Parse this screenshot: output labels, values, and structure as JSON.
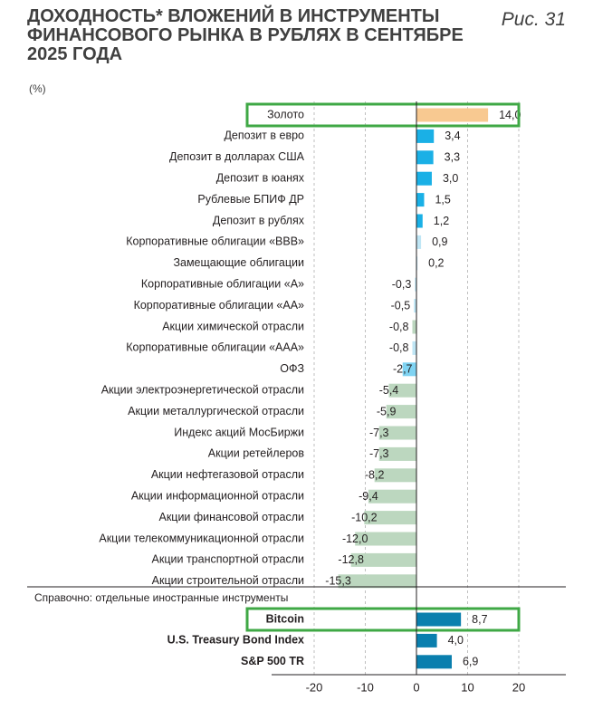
{
  "header": {
    "title_line1": "ДОХОДНОСТЬ* ВЛОЖЕНИЙ В ИНСТРУМЕНТЫ",
    "title_line2": "ФИНАНСОВОГО РЫНКА В РУБЛЯХ В СЕНТЯБРЕ",
    "title_line3": "2025 ГОДА",
    "unit": "(%)",
    "figure_label": "Рис. 31"
  },
  "colors": {
    "gold": "#f8c991",
    "deposit": "#1ab0e6",
    "light_blue": "#7fd3f2",
    "pale_blue": "#bfe6f5",
    "equity": "#bcd7bf",
    "foreign": "#0a7fae",
    "highlight": "#3fa845",
    "axis": "#231f20"
  },
  "chart_data": {
    "type": "bar",
    "orientation": "horizontal",
    "xlim": [
      -20,
      20
    ],
    "xticks": [
      -20,
      -10,
      0,
      10,
      20
    ],
    "xtick_labels": [
      "-20",
      "-10",
      "0",
      "10",
      "20"
    ],
    "grid": "vertical-dashed",
    "section_label": "Справочно: отдельные иностранные инструменты",
    "categories": [
      {
        "label": "Золото",
        "value": 14.0,
        "value_label": "14,0",
        "color": "gold",
        "highlight": true
      },
      {
        "label": "Депозит в евро",
        "value": 3.4,
        "value_label": "3,4",
        "color": "deposit"
      },
      {
        "label": "Депозит в долларах США",
        "value": 3.3,
        "value_label": "3,3",
        "color": "deposit"
      },
      {
        "label": "Депозит в юанях",
        "value": 3.0,
        "value_label": "3,0",
        "color": "deposit"
      },
      {
        "label": "Рублевые БПИФ ДР",
        "value": 1.5,
        "value_label": "1,5",
        "color": "deposit"
      },
      {
        "label": "Депозит в рублях",
        "value": 1.2,
        "value_label": "1,2",
        "color": "deposit"
      },
      {
        "label": "Корпоративные облигации «BBB»",
        "value": 0.9,
        "value_label": "0,9",
        "color": "pale_blue"
      },
      {
        "label": "Замещающие облигации",
        "value": 0.2,
        "value_label": "0,2",
        "color": "pale_blue"
      },
      {
        "label": "Корпоративные облигации «А»",
        "value": -0.3,
        "value_label": "-0,3",
        "color": "pale_blue"
      },
      {
        "label": "Корпоративные облигации «АА»",
        "value": -0.5,
        "value_label": "-0,5",
        "color": "pale_blue"
      },
      {
        "label": "Акции химической отрасли",
        "value": -0.8,
        "value_label": "-0,8",
        "color": "equity"
      },
      {
        "label": "Корпоративные облигации «ААА»",
        "value": -0.8,
        "value_label": "-0,8",
        "color": "pale_blue"
      },
      {
        "label": "ОФЗ",
        "value": -2.7,
        "value_label": "-2,7",
        "color": "light_blue"
      },
      {
        "label": "Акции электроэнергетической отрасли",
        "value": -5.4,
        "value_label": "-5,4",
        "color": "equity"
      },
      {
        "label": "Акции металлургической отрасли",
        "value": -5.9,
        "value_label": "-5,9",
        "color": "equity"
      },
      {
        "label": "Индекс акций МосБиржи",
        "value": -7.3,
        "value_label": "-7,3",
        "color": "equity"
      },
      {
        "label": "Акции ретейлеров",
        "value": -7.3,
        "value_label": "-7,3",
        "color": "equity"
      },
      {
        "label": "Акции нефтегазовой отрасли",
        "value": -8.2,
        "value_label": "-8,2",
        "color": "equity"
      },
      {
        "label": "Акции информационной отрасли",
        "value": -9.4,
        "value_label": "-9,4",
        "color": "equity"
      },
      {
        "label": "Акции финансовой отрасли",
        "value": -10.2,
        "value_label": "-10,2",
        "color": "equity"
      },
      {
        "label": "Акции телекоммуникационной отрасли",
        "value": -12.0,
        "value_label": "-12,0",
        "color": "equity"
      },
      {
        "label": "Акции транспортной отрасли",
        "value": -12.8,
        "value_label": "-12,8",
        "color": "equity"
      },
      {
        "label": "Акции строительной отрасли",
        "value": -15.3,
        "value_label": "-15,3",
        "color": "equity"
      }
    ],
    "foreign": [
      {
        "label": "Bitcoin",
        "value": 8.7,
        "value_label": "8,7",
        "color": "foreign",
        "highlight": true
      },
      {
        "label": "U.S. Treasury Bond Index",
        "value": 4.0,
        "value_label": "4,0",
        "color": "foreign"
      },
      {
        "label": "S&P 500 TR",
        "value": 6.9,
        "value_label": "6,9",
        "color": "foreign"
      }
    ]
  }
}
